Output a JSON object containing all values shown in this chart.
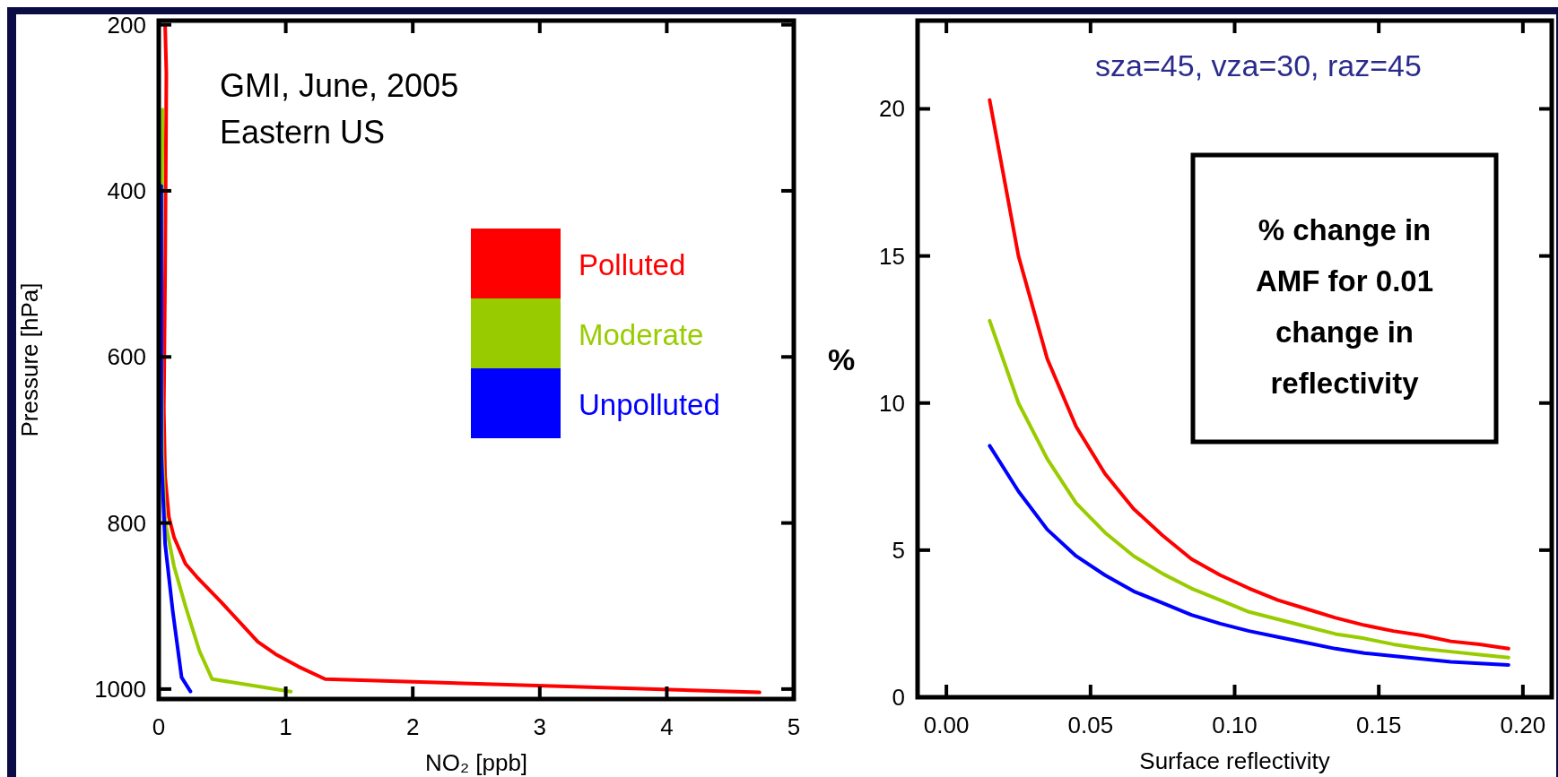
{
  "chart_data": [
    {
      "type": "line",
      "xlabel": "NO₂ [ppb]",
      "ylabel": "Pressure [hPa]",
      "xlim": [
        0,
        5
      ],
      "ylim": [
        1012,
        195
      ],
      "xticks": [
        0,
        1,
        2,
        3,
        4,
        5
      ],
      "yticks": [
        200,
        400,
        600,
        800,
        1000
      ],
      "legend": "right",
      "annotations": [
        "GMI, June, 2005\nEastern US"
      ],
      "series": [
        {
          "name": "Polluted",
          "color": "#ff0000",
          "x": [
            0.05,
            0.06,
            0.05,
            0.04,
            0.05,
            0.08,
            0.12,
            0.21,
            0.3,
            0.49,
            0.78,
            0.92,
            1.1,
            1.31,
            4.73
          ],
          "values": [
            200,
            259,
            502,
            663,
            744,
            793,
            817,
            849,
            865,
            895,
            943,
            958,
            973,
            988,
            1004
          ]
        },
        {
          "name": "Moderate",
          "color": "#99cc00",
          "x": [
            0.03,
            0.02,
            0.03,
            0.05,
            0.12,
            0.21,
            0.32,
            0.42,
            1.04
          ],
          "values": [
            302,
            556,
            717,
            798,
            852,
            900,
            954,
            988,
            1003
          ]
        },
        {
          "name": "Unpolluted",
          "color": "#0000ff",
          "x": [
            0.02,
            0.02,
            0.05,
            0.11,
            0.18,
            0.25
          ],
          "values": [
            394,
            717,
            825,
            906,
            986,
            1003
          ]
        }
      ]
    },
    {
      "type": "line",
      "xlabel": "Surface reflectivity",
      "ylabel": "%",
      "xlim": [
        -0.01,
        0.21
      ],
      "ylim": [
        0,
        23
      ],
      "xticks": [
        {
          "value": 0,
          "label": "0.00"
        },
        {
          "value": 0.05,
          "label": "0.05"
        },
        {
          "value": 0.1,
          "label": "0.10"
        },
        {
          "value": 0.15,
          "label": "0.15"
        },
        {
          "value": 0.2,
          "label": "0.20"
        }
      ],
      "yticks": [
        0,
        5,
        10,
        15,
        20
      ],
      "annotations": [
        "sza=45, vza=30, raz=45",
        "% change in\nAMF for 0.01\nchange in\nreflectivity"
      ],
      "x": [
        0.015,
        0.025,
        0.035,
        0.045,
        0.055,
        0.065,
        0.075,
        0.085,
        0.095,
        0.105,
        0.115,
        0.125,
        0.135,
        0.145,
        0.155,
        0.165,
        0.175,
        0.185,
        0.195
      ],
      "series": [
        {
          "color": "#ff0000",
          "values": [
            20.3,
            15.0,
            11.5,
            9.2,
            7.6,
            6.4,
            5.5,
            4.7,
            4.15,
            3.7,
            3.3,
            3.0,
            2.7,
            2.45,
            2.25,
            2.1,
            1.9,
            1.8,
            1.65
          ]
        },
        {
          "color": "#99cc00",
          "values": [
            12.8,
            10.0,
            8.1,
            6.6,
            5.6,
            4.8,
            4.2,
            3.7,
            3.3,
            2.9,
            2.65,
            2.4,
            2.15,
            2.0,
            1.8,
            1.65,
            1.55,
            1.45,
            1.35
          ]
        },
        {
          "color": "#0000ff",
          "values": [
            8.55,
            7.0,
            5.7,
            4.8,
            4.15,
            3.6,
            3.2,
            2.8,
            2.5,
            2.25,
            2.05,
            1.85,
            1.65,
            1.5,
            1.4,
            1.3,
            1.2,
            1.15,
            1.1
          ]
        }
      ]
    }
  ]
}
